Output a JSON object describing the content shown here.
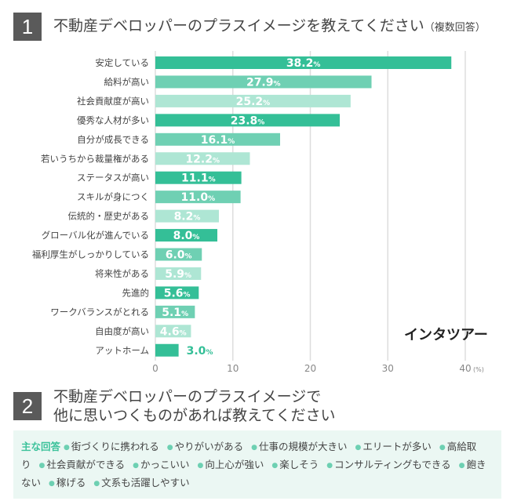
{
  "q1": {
    "number": "1",
    "title": "不動産デベロッパーのプラスイメージを教えてください",
    "note": "（複数回答）"
  },
  "q2": {
    "number": "2",
    "title_line1": "不動産デベロッパーのプラスイメージで",
    "title_line2": "他に思いつくものがあれば教えてください"
  },
  "brand": "インタツアー",
  "chart_data": {
    "type": "bar",
    "orientation": "horizontal",
    "categories": [
      "安定している",
      "給料が高い",
      "社会貢献度が高い",
      "優秀な人材が多い",
      "自分が成長できる",
      "若いうちから裁量権がある",
      "ステータスが高い",
      "スキルが身につく",
      "伝統的・歴史がある",
      "グローバル化が進んでいる",
      "福利厚生がしっかりしている",
      "将来性がある",
      "先進的",
      "ワークバランスがとれる",
      "自由度が高い",
      "アットホーム"
    ],
    "values": [
      38.2,
      27.9,
      25.2,
      23.8,
      16.1,
      12.2,
      11.1,
      11.0,
      8.2,
      8.0,
      6.0,
      5.9,
      5.6,
      5.1,
      4.6,
      3.0
    ],
    "value_suffix": "%",
    "xlim": [
      0,
      40
    ],
    "xticks": [
      "0",
      "10",
      "20",
      "30",
      "40"
    ],
    "xunit": "(%)",
    "grid": true,
    "colors": [
      "#34bf97",
      "#6fd0b3",
      "#aee6d4"
    ]
  },
  "answers": {
    "lead": "主な回答",
    "items": [
      "街づくりに携われる",
      "やりがいがある",
      "仕事の規模が大きい",
      "エリートが多い",
      "高給取り",
      "社会貢献ができる",
      "かっこいい",
      "向上心が強い",
      "楽しそう",
      "コンサルティングもできる",
      "飽きない",
      "稼げる",
      "文系も活躍しやすい"
    ]
  }
}
